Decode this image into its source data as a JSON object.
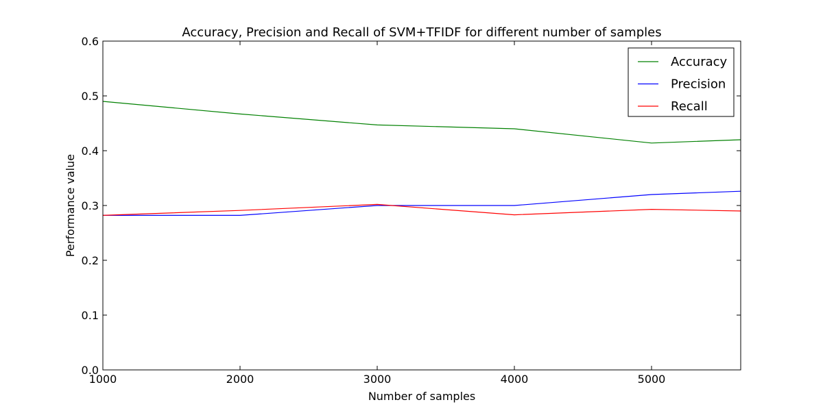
{
  "chart_data": {
    "type": "line",
    "title": "Accuracy, Precision and Recall of SVM+TFIDF for different number of samples",
    "xlabel": "Number of samples",
    "ylabel": "Performance value",
    "xlim": [
      1000,
      5650
    ],
    "ylim": [
      0.0,
      0.6
    ],
    "x_ticks": [
      1000,
      2000,
      3000,
      4000,
      5000
    ],
    "y_ticks": [
      0.0,
      0.1,
      0.2,
      0.3,
      0.4,
      0.5,
      0.6
    ],
    "x_tick_labels": [
      "1000",
      "2000",
      "3000",
      "4000",
      "5000"
    ],
    "y_tick_labels": [
      "0.0",
      "0.1",
      "0.2",
      "0.3",
      "0.4",
      "0.5",
      "0.6"
    ],
    "grid": false,
    "legend_position": "top-right",
    "x": [
      1000,
      2000,
      3000,
      4000,
      5000,
      5650
    ],
    "series": [
      {
        "name": "Accuracy",
        "color": "#008000",
        "values": [
          0.49,
          0.467,
          0.447,
          0.44,
          0.414,
          0.42
        ]
      },
      {
        "name": "Precision",
        "color": "#0000ff",
        "values": [
          0.282,
          0.282,
          0.3,
          0.3,
          0.32,
          0.326
        ]
      },
      {
        "name": "Recall",
        "color": "#ff0000",
        "values": [
          0.282,
          0.291,
          0.302,
          0.283,
          0.293,
          0.29
        ]
      }
    ]
  }
}
